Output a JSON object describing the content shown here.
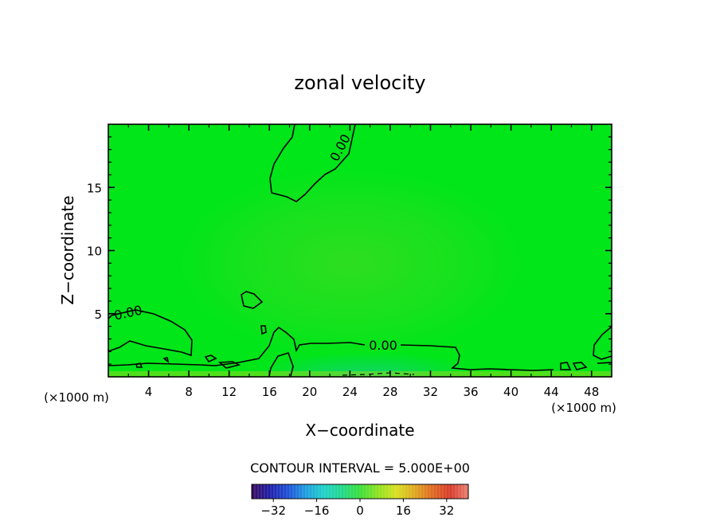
{
  "chart_data": {
    "type": "heatmap",
    "title": "zonal velocity",
    "xlabel": "X−coordinate",
    "ylabel": "Z−coordinate",
    "x_unit_left": "(×1000 m)",
    "x_unit_right": "(×1000 m)",
    "xlim": [
      0,
      50
    ],
    "ylim": [
      0,
      20
    ],
    "x_ticks": [
      4,
      8,
      12,
      16,
      20,
      24,
      28,
      32,
      36,
      40,
      44,
      48
    ],
    "x_tick_labels": [
      "4",
      "8",
      "12",
      "16",
      "20",
      "24",
      "28",
      "32",
      "36",
      "40",
      "44",
      "48"
    ],
    "y_ticks": [
      5,
      10,
      15
    ],
    "y_tick_labels": [
      "5",
      "10",
      "15"
    ],
    "field_description": "Field nearly uniform near 0 m/s (green); weak positive values (~+2) centered near x=25, z=8; weak negative values near the ground between x=20 and x=34.",
    "contour_labels": [
      {
        "text": "0.00",
        "x": 24.2,
        "z": 18.2,
        "angle": -62
      },
      {
        "text": "0.00",
        "x": 2.0,
        "z": 4.9,
        "angle": -12
      },
      {
        "text": "0.00",
        "x": 27.0,
        "z": 2.6,
        "angle": 0
      }
    ],
    "contour_interval_label": "CONTOUR INTERVAL = 5.000E+00",
    "colorbar": {
      "min": -40,
      "max": 40,
      "tick_values": [
        -32,
        -16,
        0,
        16,
        32
      ],
      "tick_labels": [
        "−32",
        "−16",
        "0",
        "16",
        "32"
      ],
      "color_stops": [
        "#3a0a5e",
        "#1f1fa8",
        "#1e4fd8",
        "#1e9de0",
        "#1fd2c8",
        "#21d88a",
        "#3adf3a",
        "#8fe21f",
        "#d8e01f",
        "#e0a81f",
        "#df6a1f",
        "#d83a2a",
        "#e88070"
      ]
    },
    "background_color": "#00e619",
    "positive_tint": "#33dd21",
    "negative_tint": "#14d27a"
  }
}
